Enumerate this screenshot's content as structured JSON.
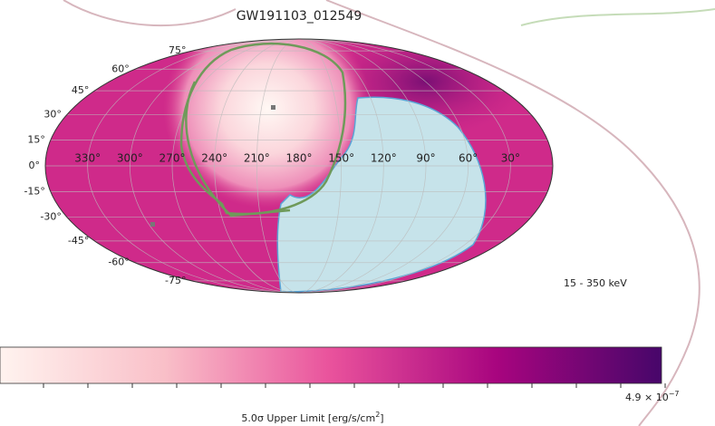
{
  "title": "GW191103_012549",
  "longitude_labels": [
    "330°",
    "300°",
    "270°",
    "240°",
    "210°",
    "180°",
    "150°",
    "120°",
    "90°",
    "60°",
    "30°"
  ],
  "latitude_labels": [
    "75°",
    "60°",
    "45°",
    "30°",
    "15°",
    "0°",
    "-15°",
    "-30°",
    "-45°",
    "-60°",
    "-75°"
  ],
  "energy_band": "15 - 350 keV",
  "colorbar": {
    "max_label": "4.9 × 10",
    "max_exponent": "−7",
    "label": "5.0σ Upper Limit [erg/s/cm",
    "label_sup": "2",
    "label_end": "]"
  }
}
